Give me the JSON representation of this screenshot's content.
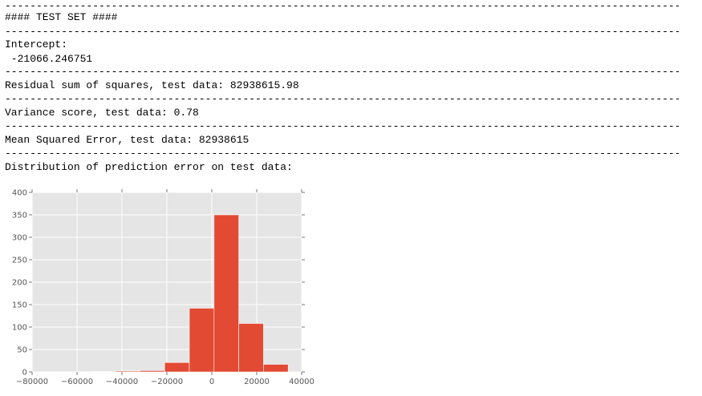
{
  "output": {
    "rule": "---------------------------------------------------------------------------------------------------------------------",
    "header": "#### TEST SET ####",
    "intercept_label": "Intercept:",
    "intercept_value": " -21066.246751",
    "rss": "Residual sum of squares, test data: 82938615.98",
    "variance": "Variance score, test data: 0.78",
    "mse": "Mean Squared Error, test data: 82938615",
    "distribution": "Distribution of prediction error on test data:"
  },
  "chart_data": {
    "type": "bar",
    "title": "",
    "xlabel": "",
    "ylabel": "",
    "xlim": [
      -80000,
      40000
    ],
    "ylim": [
      0,
      400
    ],
    "xticks": [
      -80000,
      -60000,
      -40000,
      -20000,
      0,
      20000,
      40000
    ],
    "yticks": [
      0,
      50,
      100,
      150,
      200,
      250,
      300,
      350,
      400
    ],
    "bin_edges": [
      -54000,
      -43000,
      -32000,
      -21000,
      -10000,
      1000,
      12000,
      23000,
      34000
    ],
    "counts": [
      1,
      2,
      3,
      21,
      142,
      350,
      108,
      17,
      6
    ],
    "bar_start": -54000,
    "bar_width": 10000,
    "grid": true,
    "bar_color": "#E24A33",
    "bg_color": "#E5E5E5"
  }
}
